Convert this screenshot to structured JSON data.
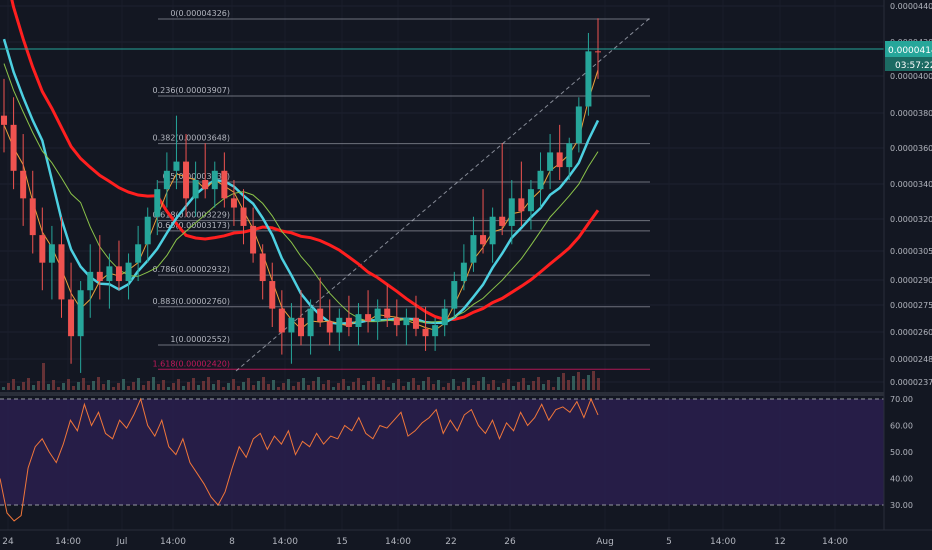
{
  "chart_data": [
    {
      "type": "candlestick",
      "series": [
        {
          "name": "",
          "kind": "candles",
          "color_up": "#26a69a",
          "color_down": "#ef5350"
        },
        {
          "name": "",
          "kind": "ma",
          "color": "#ff1f1f"
        },
        {
          "name": "",
          "kind": "ma",
          "color": "#4dd0e1"
        },
        {
          "name": "",
          "kind": "ma",
          "color": "#e8a13a"
        },
        {
          "name": "",
          "kind": "ma",
          "color": "#8bc34a"
        }
      ],
      "price_axis": {
        "ticks": [
          "0.00004400",
          "0.00004200",
          "0.00004000",
          "0.00003800",
          "0.00003600",
          "0.00003400",
          "0.00003200",
          "0.00003050",
          "0.00002900",
          "0.00002750",
          "0.00002600",
          "0.00002480",
          "0.00002370"
        ],
        "last_price": "0.00004148",
        "countdown": "03:57:22"
      },
      "time_axis": {
        "ticks": [
          "24",
          "14:00",
          "Jul",
          "14:00",
          "8",
          "14:00",
          "15",
          "14:00",
          "22",
          "26",
          "Aug",
          "5",
          "14:00",
          "12",
          "14:00"
        ]
      },
      "fib_levels": [
        {
          "label": "0(0.00004326)",
          "price": 4.326e-05
        },
        {
          "label": "0.236(0.00003907)",
          "price": 3.907e-05
        },
        {
          "label": "0.382(0.00003648)",
          "price": 3.648e-05
        },
        {
          "label": "0.5(0.00003439)",
          "price": 3.439e-05
        },
        {
          "label": "0.618(0.00003229)",
          "price": 3.229e-05
        },
        {
          "label": "0.65(0.00003173)",
          "price": 3.173e-05
        },
        {
          "label": "0.786(0.00002932)",
          "price": 2.932e-05
        },
        {
          "label": "0.883(0.00002760)",
          "price": 2.76e-05
        },
        {
          "label": "1(0.00002552)",
          "price": 2.552e-05
        },
        {
          "label": "1.618(0.00002420)",
          "price": 2.42e-05
        }
      ],
      "candles": [
        [
          3.8,
          4.0,
          3.6,
          3.75
        ],
        [
          3.75,
          3.9,
          3.4,
          3.5
        ],
        [
          3.5,
          3.7,
          3.2,
          3.35
        ],
        [
          3.35,
          3.5,
          3.05,
          3.15
        ],
        [
          3.15,
          3.3,
          2.85,
          3.0
        ],
        [
          3.0,
          3.2,
          2.8,
          3.1
        ],
        [
          3.1,
          3.25,
          2.7,
          2.8
        ],
        [
          2.8,
          3.0,
          2.45,
          2.6
        ],
        [
          2.6,
          2.9,
          2.4,
          2.85
        ],
        [
          2.85,
          3.1,
          2.7,
          2.95
        ],
        [
          2.95,
          3.15,
          2.8,
          2.9
        ],
        [
          2.9,
          3.05,
          2.75,
          2.98
        ],
        [
          2.98,
          3.12,
          2.85,
          2.9
        ],
        [
          2.9,
          3.05,
          2.8,
          3.0
        ],
        [
          3.0,
          3.2,
          2.9,
          3.1
        ],
        [
          3.1,
          3.3,
          3.0,
          3.25
        ],
        [
          3.25,
          3.45,
          3.15,
          3.4
        ],
        [
          3.4,
          3.6,
          3.3,
          3.5
        ],
        [
          3.5,
          3.8,
          3.4,
          3.55
        ],
        [
          3.55,
          3.7,
          3.25,
          3.35
        ],
        [
          3.35,
          3.55,
          3.25,
          3.45
        ],
        [
          3.45,
          3.65,
          3.35,
          3.4
        ],
        [
          3.4,
          3.55,
          3.3,
          3.5
        ],
        [
          3.5,
          3.6,
          3.3,
          3.35
        ],
        [
          3.35,
          3.45,
          3.2,
          3.3
        ],
        [
          3.3,
          3.4,
          3.1,
          3.2
        ],
        [
          3.2,
          3.3,
          3.0,
          3.05
        ],
        [
          3.05,
          3.1,
          2.8,
          2.9
        ],
        [
          2.9,
          3.0,
          2.65,
          2.75
        ],
        [
          2.75,
          2.85,
          2.5,
          2.62
        ],
        [
          2.62,
          2.78,
          2.45,
          2.7
        ],
        [
          2.7,
          2.85,
          2.55,
          2.6
        ],
        [
          2.6,
          2.8,
          2.5,
          2.75
        ],
        [
          2.75,
          2.92,
          2.65,
          2.68
        ],
        [
          2.68,
          2.8,
          2.55,
          2.62
        ],
        [
          2.62,
          2.75,
          2.52,
          2.7
        ],
        [
          2.7,
          2.82,
          2.6,
          2.65
        ],
        [
          2.65,
          2.78,
          2.55,
          2.72
        ],
        [
          2.72,
          2.85,
          2.62,
          2.68
        ],
        [
          2.68,
          2.8,
          2.58,
          2.75
        ],
        [
          2.75,
          2.88,
          2.65,
          2.7
        ],
        [
          2.7,
          2.8,
          2.6,
          2.66
        ],
        [
          2.66,
          2.75,
          2.55,
          2.7
        ],
        [
          2.7,
          2.82,
          2.6,
          2.64
        ],
        [
          2.64,
          2.76,
          2.52,
          2.6
        ],
        [
          2.6,
          2.7,
          2.52,
          2.66
        ],
        [
          2.66,
          2.8,
          2.6,
          2.75
        ],
        [
          2.75,
          2.95,
          2.7,
          2.9
        ],
        [
          2.9,
          3.1,
          2.85,
          3.0
        ],
        [
          3.0,
          3.25,
          2.95,
          3.15
        ],
        [
          3.15,
          3.4,
          3.05,
          3.1
        ],
        [
          3.1,
          3.3,
          3.0,
          3.25
        ],
        [
          3.25,
          3.65,
          3.15,
          3.2
        ],
        [
          3.2,
          3.45,
          3.1,
          3.35
        ],
        [
          3.35,
          3.55,
          3.2,
          3.28
        ],
        [
          3.28,
          3.45,
          3.18,
          3.4
        ],
        [
          3.4,
          3.6,
          3.3,
          3.5
        ],
        [
          3.5,
          3.7,
          3.4,
          3.6
        ],
        [
          3.6,
          3.75,
          3.45,
          3.52
        ],
        [
          3.52,
          3.68,
          3.45,
          3.65
        ],
        [
          3.65,
          3.9,
          3.6,
          3.85
        ],
        [
          3.85,
          4.25,
          3.8,
          4.15
        ],
        [
          4.15,
          4.33,
          4.0,
          4.148
        ]
      ]
    },
    {
      "type": "line",
      "series": [
        {
          "name": "",
          "color": "#f0763a",
          "values": [
            40,
            27,
            24,
            26,
            44,
            52,
            55,
            50,
            46,
            53,
            62,
            58,
            68,
            60,
            65,
            57,
            55,
            62,
            59,
            64,
            70,
            60,
            56,
            62,
            52,
            49,
            55,
            46,
            42,
            38,
            33,
            30,
            35,
            44,
            52,
            48,
            55,
            57,
            51,
            56,
            53,
            58,
            49,
            54,
            52,
            57,
            53,
            56,
            55,
            60,
            58,
            63,
            57,
            55,
            60,
            59,
            62,
            65,
            56,
            58,
            61,
            63,
            66,
            57,
            62,
            58,
            64,
            66,
            60,
            57,
            62,
            55,
            61,
            58,
            65,
            60,
            63,
            68,
            62,
            66,
            67,
            65,
            69,
            63,
            70,
            64
          ]
        }
      ],
      "y_axis": {
        "ticks": [
          "70.00",
          "60.00",
          "50.00",
          "40.00",
          "30.00"
        ],
        "ylim": [
          20,
          72
        ]
      },
      "bands": [
        30,
        70
      ]
    }
  ]
}
